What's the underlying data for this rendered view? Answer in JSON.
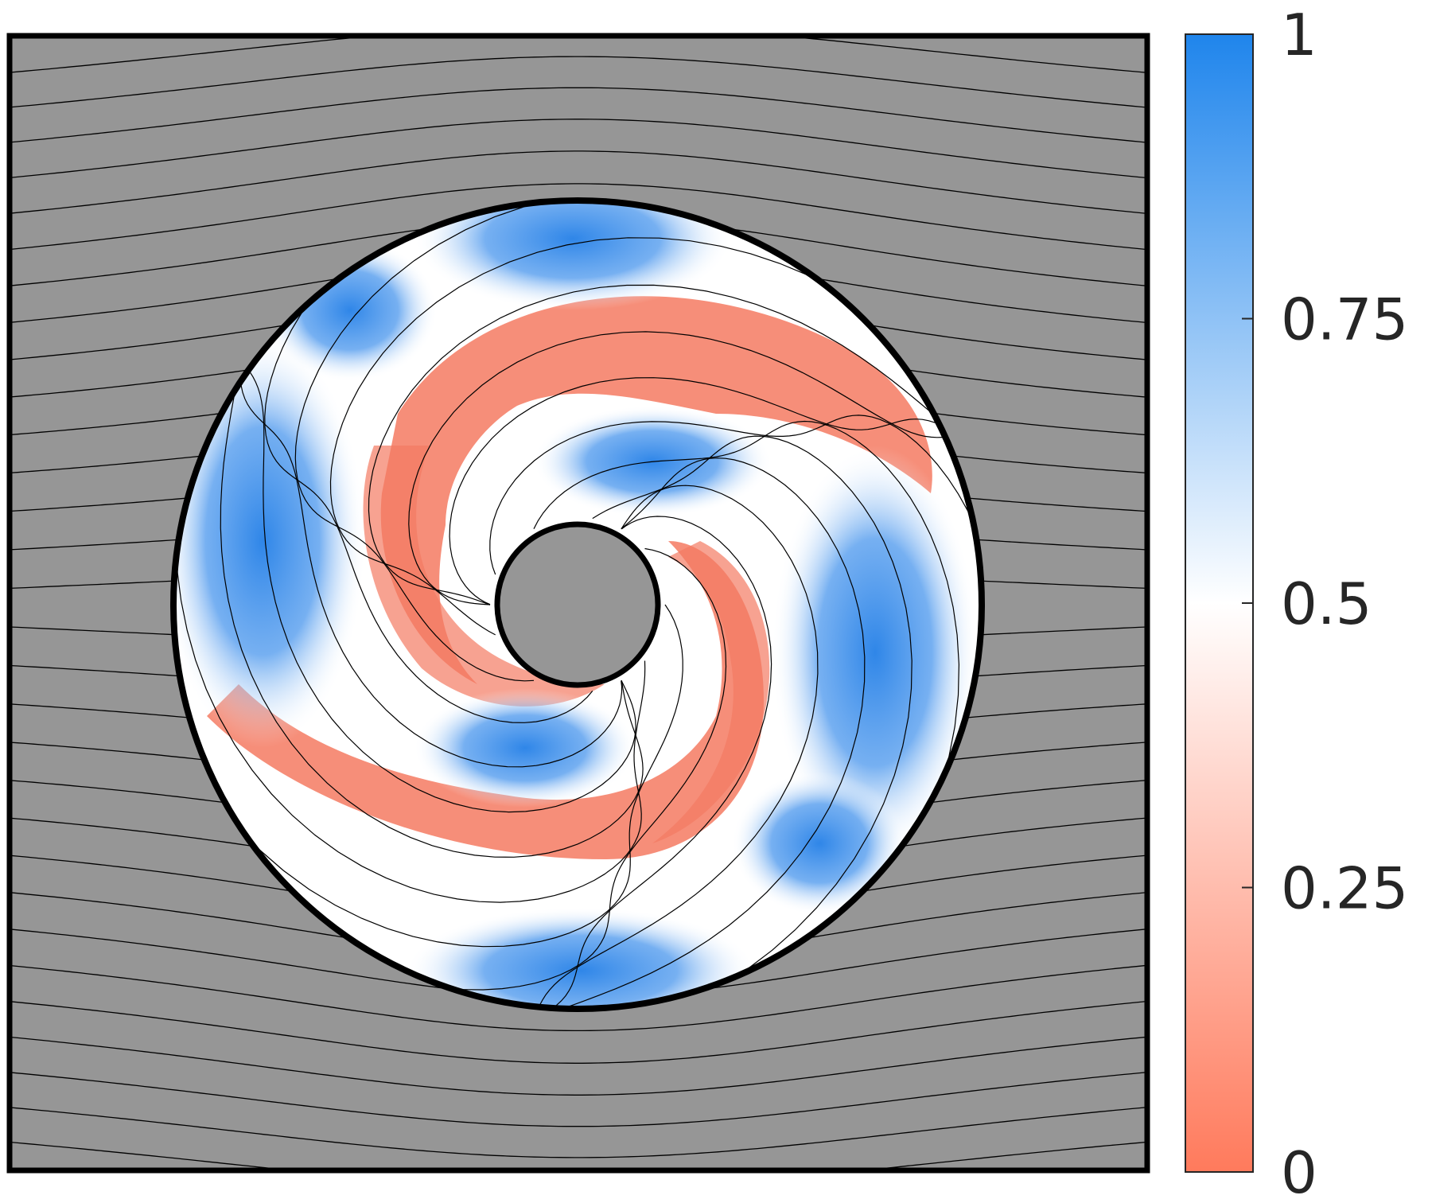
{
  "figure": {
    "background_color": "#969696",
    "colorbar": {
      "min": 0,
      "max": 1,
      "colors": [
        "#ff7a5c",
        "#ffffff",
        "#1f85ec"
      ],
      "ticks": [
        {
          "value": 1,
          "label": "1"
        },
        {
          "value": 0.75,
          "label": "0.75"
        },
        {
          "value": 0.5,
          "label": "0.5"
        },
        {
          "value": 0.25,
          "label": "0.25"
        },
        {
          "value": 0,
          "label": "0"
        }
      ]
    }
  }
}
